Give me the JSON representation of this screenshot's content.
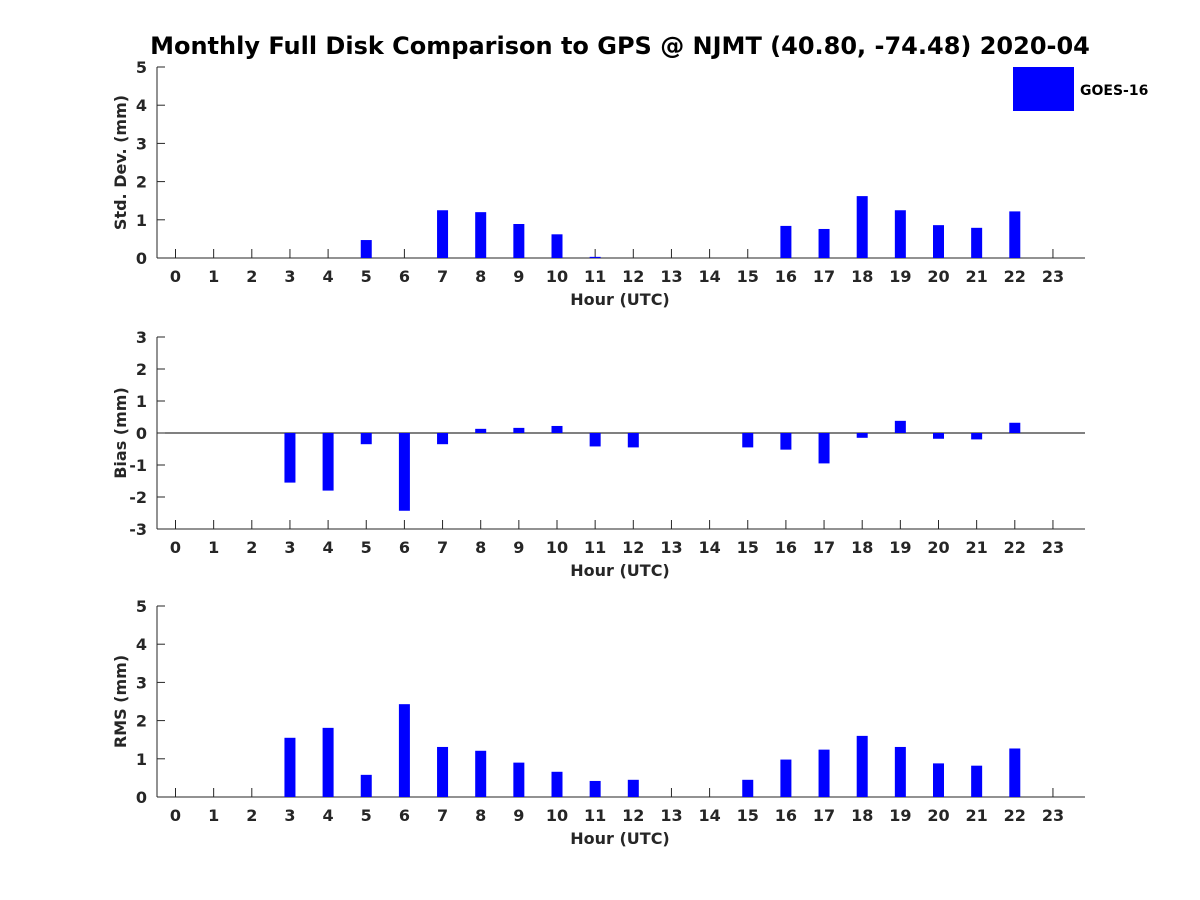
{
  "title": "Monthly Full Disk Comparison to GPS @ NJMT (40.80, -74.48) 2020-04",
  "legend": {
    "label": "GOES-16",
    "color": "#0000ff",
    "placement": "top-right"
  },
  "chart_data": [
    {
      "type": "bar",
      "ylabel": "Std. Dev. (mm)",
      "xlabel": "Hour (UTC)",
      "ylim": [
        0,
        5
      ],
      "yticks": [
        0,
        1,
        2,
        3,
        4,
        5
      ],
      "categories": [
        "0",
        "1",
        "2",
        "3",
        "4",
        "5",
        "6",
        "7",
        "8",
        "9",
        "10",
        "11",
        "12",
        "13",
        "14",
        "15",
        "16",
        "17",
        "18",
        "19",
        "20",
        "21",
        "22",
        "23"
      ],
      "series": [
        {
          "name": "GOES-16",
          "values": [
            null,
            null,
            null,
            null,
            null,
            0.47,
            null,
            1.25,
            1.2,
            0.89,
            0.62,
            0.03,
            null,
            null,
            null,
            null,
            0.84,
            0.76,
            1.62,
            1.25,
            0.86,
            0.79,
            1.22,
            null
          ]
        }
      ],
      "grid": false
    },
    {
      "type": "bar",
      "ylabel": "Bias (mm)",
      "xlabel": "Hour (UTC)",
      "ylim": [
        -3,
        3
      ],
      "yticks": [
        -3,
        -2,
        -1,
        0,
        1,
        2,
        3
      ],
      "categories": [
        "0",
        "1",
        "2",
        "3",
        "4",
        "5",
        "6",
        "7",
        "8",
        "9",
        "10",
        "11",
        "12",
        "13",
        "14",
        "15",
        "16",
        "17",
        "18",
        "19",
        "20",
        "21",
        "22",
        "23"
      ],
      "series": [
        {
          "name": "GOES-16",
          "values": [
            null,
            null,
            null,
            -1.55,
            -1.8,
            -0.35,
            -2.43,
            -0.35,
            0.13,
            0.16,
            0.22,
            -0.42,
            -0.45,
            null,
            null,
            -0.45,
            -0.52,
            -0.95,
            -0.15,
            0.38,
            -0.18,
            -0.2,
            0.32,
            null
          ]
        }
      ],
      "grid": false
    },
    {
      "type": "bar",
      "ylabel": "RMS (mm)",
      "xlabel": "Hour (UTC)",
      "ylim": [
        0,
        5
      ],
      "yticks": [
        0,
        1,
        2,
        3,
        4,
        5
      ],
      "categories": [
        "0",
        "1",
        "2",
        "3",
        "4",
        "5",
        "6",
        "7",
        "8",
        "9",
        "10",
        "11",
        "12",
        "13",
        "14",
        "15",
        "16",
        "17",
        "18",
        "19",
        "20",
        "21",
        "22",
        "23"
      ],
      "series": [
        {
          "name": "GOES-16",
          "values": [
            null,
            null,
            null,
            1.55,
            1.81,
            0.58,
            2.43,
            1.31,
            1.21,
            0.9,
            0.66,
            0.42,
            0.45,
            null,
            null,
            0.45,
            0.98,
            1.24,
            1.6,
            1.31,
            0.88,
            0.82,
            1.27,
            null
          ]
        }
      ],
      "grid": false
    }
  ]
}
